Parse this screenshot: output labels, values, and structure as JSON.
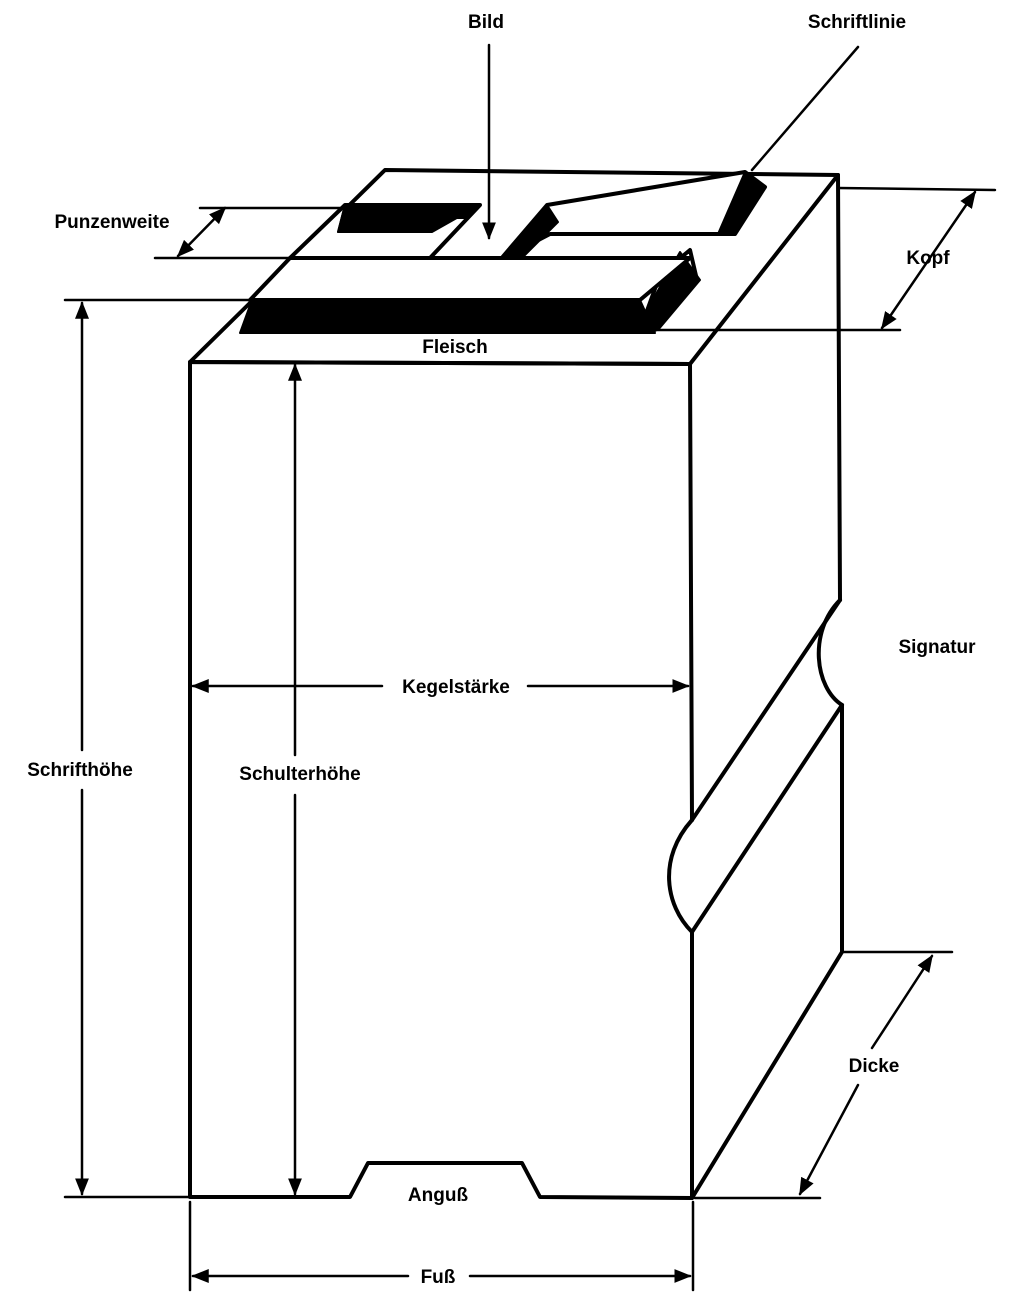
{
  "labels": {
    "bild": "Bild",
    "schriftlinie": "Schriftlinie",
    "punzenweite": "Punzenweite",
    "kopf": "Kopf",
    "fleisch": "Fleisch",
    "signatur": "Signatur",
    "kegelstaerke": "Kegelstärke",
    "schrifthoehe": "Schrifthöhe",
    "schulterhoehe": "Schulterhöhe",
    "dicke": "Dicke",
    "anguss": "Anguß",
    "fuss": "Fuß"
  }
}
